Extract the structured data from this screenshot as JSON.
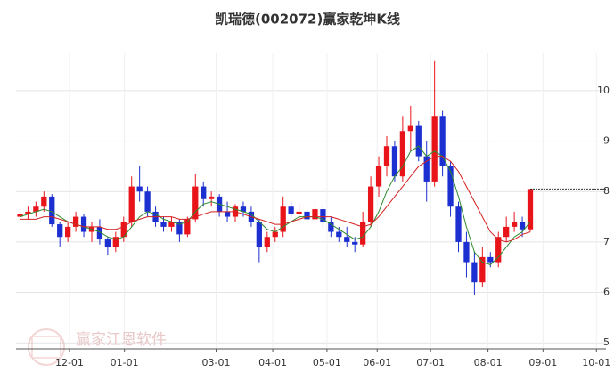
{
  "chart_data": {
    "type": "candlestick",
    "title": "凯瑞德(002072)赢家乾坤K线",
    "watermark": "赢家江恩软件",
    "up_color": "#e8141a",
    "down_color": "#1c2fd0",
    "xlim": [
      0,
      74
    ],
    "xticks": [
      {
        "value": 6.7,
        "label": "12-01"
      },
      {
        "value": 13.6,
        "label": "01-01"
      },
      {
        "value": 25.1,
        "label": "03-01"
      },
      {
        "value": 32.2,
        "label": "04-01"
      },
      {
        "value": 39.0,
        "label": "05-01"
      },
      {
        "value": 45.3,
        "label": "06-01"
      },
      {
        "value": 52.0,
        "label": "07-01"
      },
      {
        "value": 59.2,
        "label": "08-01"
      },
      {
        "value": 66.1,
        "label": "09-01"
      },
      {
        "value": 72.8,
        "label": "10-01"
      }
    ],
    "ylim": [
      4.88,
      10.74
    ],
    "yticks": [
      5,
      6,
      7,
      8,
      9,
      10
    ],
    "grid": true,
    "open": [
      7.5,
      7.55,
      7.6,
      7.7,
      7.9,
      7.35,
      7.1,
      7.3,
      7.5,
      7.2,
      7.3,
      7.05,
      6.9,
      7.1,
      7.4,
      8.1,
      8.0,
      7.6,
      7.4,
      7.3,
      7.4,
      7.15,
      7.45,
      8.1,
      7.85,
      7.9,
      7.6,
      7.5,
      7.7,
      7.6,
      7.4,
      6.9,
      7.1,
      7.2,
      7.7,
      7.55,
      7.6,
      7.45,
      7.65,
      7.4,
      7.2,
      7.1,
      7.0,
      6.95,
      7.4,
      8.1,
      8.5,
      8.9,
      8.3,
      9.2,
      9.3,
      8.7,
      8.2,
      9.5,
      8.5,
      7.7,
      7.0,
      6.6,
      6.2,
      6.7,
      6.6,
      7.1,
      7.3,
      7.4,
      7.25
    ],
    "high": [
      7.65,
      7.7,
      7.8,
      8.0,
      7.95,
      7.4,
      7.4,
      7.6,
      7.55,
      7.4,
      7.45,
      7.1,
      7.2,
      7.5,
      8.3,
      8.5,
      8.1,
      7.7,
      7.5,
      7.5,
      7.45,
      7.5,
      8.35,
      8.2,
      8.0,
      7.95,
      7.8,
      7.75,
      7.8,
      7.7,
      7.45,
      7.2,
      7.3,
      7.9,
      7.8,
      7.75,
      7.7,
      7.8,
      7.7,
      7.5,
      7.3,
      7.3,
      7.1,
      7.6,
      8.3,
      8.7,
      9.1,
      9.0,
      9.5,
      9.7,
      9.4,
      9.0,
      10.6,
      9.6,
      8.6,
      7.8,
      7.2,
      6.8,
      6.9,
      6.8,
      7.2,
      7.5,
      7.6,
      7.5,
      8.05
    ],
    "low": [
      7.4,
      7.45,
      7.5,
      7.6,
      7.3,
      6.9,
      7.0,
      7.2,
      7.1,
      7.0,
      6.95,
      6.75,
      6.8,
      7.0,
      7.3,
      7.8,
      7.5,
      7.3,
      7.2,
      7.2,
      7.0,
      7.1,
      7.4,
      7.7,
      7.7,
      7.5,
      7.4,
      7.4,
      7.5,
      7.3,
      6.6,
      6.8,
      7.0,
      7.1,
      7.5,
      7.4,
      7.4,
      7.4,
      7.3,
      7.1,
      7.0,
      6.9,
      6.8,
      6.9,
      7.3,
      7.9,
      8.3,
      8.2,
      8.2,
      8.8,
      8.6,
      7.8,
      8.1,
      8.3,
      7.5,
      6.8,
      6.3,
      5.95,
      6.1,
      6.5,
      6.5,
      7.0,
      7.2,
      7.1,
      7.2
    ],
    "close": [
      7.55,
      7.6,
      7.7,
      7.9,
      7.35,
      7.1,
      7.3,
      7.5,
      7.2,
      7.3,
      7.05,
      6.9,
      7.1,
      7.4,
      8.1,
      8.0,
      7.6,
      7.4,
      7.3,
      7.4,
      7.15,
      7.45,
      8.1,
      7.85,
      7.9,
      7.6,
      7.5,
      7.7,
      7.6,
      7.4,
      6.9,
      7.1,
      7.2,
      7.7,
      7.55,
      7.6,
      7.45,
      7.65,
      7.4,
      7.2,
      7.1,
      7.0,
      6.95,
      7.4,
      8.1,
      8.5,
      8.9,
      8.3,
      9.2,
      9.3,
      8.7,
      8.2,
      9.5,
      8.5,
      7.7,
      7.0,
      6.6,
      6.2,
      6.7,
      6.6,
      7.1,
      7.3,
      7.4,
      7.25,
      8.05
    ],
    "lines": [
      {
        "color": "#2e8b2e",
        "values": [
          7.5,
          7.55,
          7.6,
          7.65,
          7.6,
          7.5,
          7.4,
          7.35,
          7.3,
          7.25,
          7.2,
          7.1,
          7.05,
          7.1,
          7.3,
          7.5,
          7.6,
          7.55,
          7.45,
          7.4,
          7.35,
          7.4,
          7.6,
          7.75,
          7.8,
          7.75,
          7.7,
          7.65,
          7.6,
          7.55,
          7.4,
          7.25,
          7.2,
          7.3,
          7.4,
          7.5,
          7.5,
          7.5,
          7.45,
          7.35,
          7.25,
          7.15,
          7.05,
          7.1,
          7.3,
          7.6,
          8.0,
          8.3,
          8.5,
          8.8,
          8.9,
          8.7,
          8.8,
          8.7,
          8.4,
          7.9,
          7.3,
          6.8,
          6.6,
          6.55,
          6.7,
          6.9,
          7.1,
          7.2,
          7.4
        ]
      },
      {
        "color": "#d42020",
        "values": [
          7.45,
          7.45,
          7.45,
          7.5,
          7.5,
          7.45,
          7.4,
          7.35,
          7.3,
          7.3,
          7.3,
          7.25,
          7.25,
          7.3,
          7.4,
          7.45,
          7.5,
          7.5,
          7.5,
          7.5,
          7.45,
          7.45,
          7.5,
          7.55,
          7.6,
          7.6,
          7.6,
          7.6,
          7.55,
          7.5,
          7.45,
          7.4,
          7.35,
          7.35,
          7.4,
          7.45,
          7.5,
          7.5,
          7.5,
          7.5,
          7.45,
          7.4,
          7.35,
          7.3,
          7.35,
          7.5,
          7.7,
          7.9,
          8.1,
          8.3,
          8.5,
          8.6,
          8.7,
          8.7,
          8.6,
          8.4,
          8.1,
          7.8,
          7.5,
          7.2,
          7.05,
          7.0,
          7.05,
          7.15,
          7.2
        ]
      }
    ]
  }
}
